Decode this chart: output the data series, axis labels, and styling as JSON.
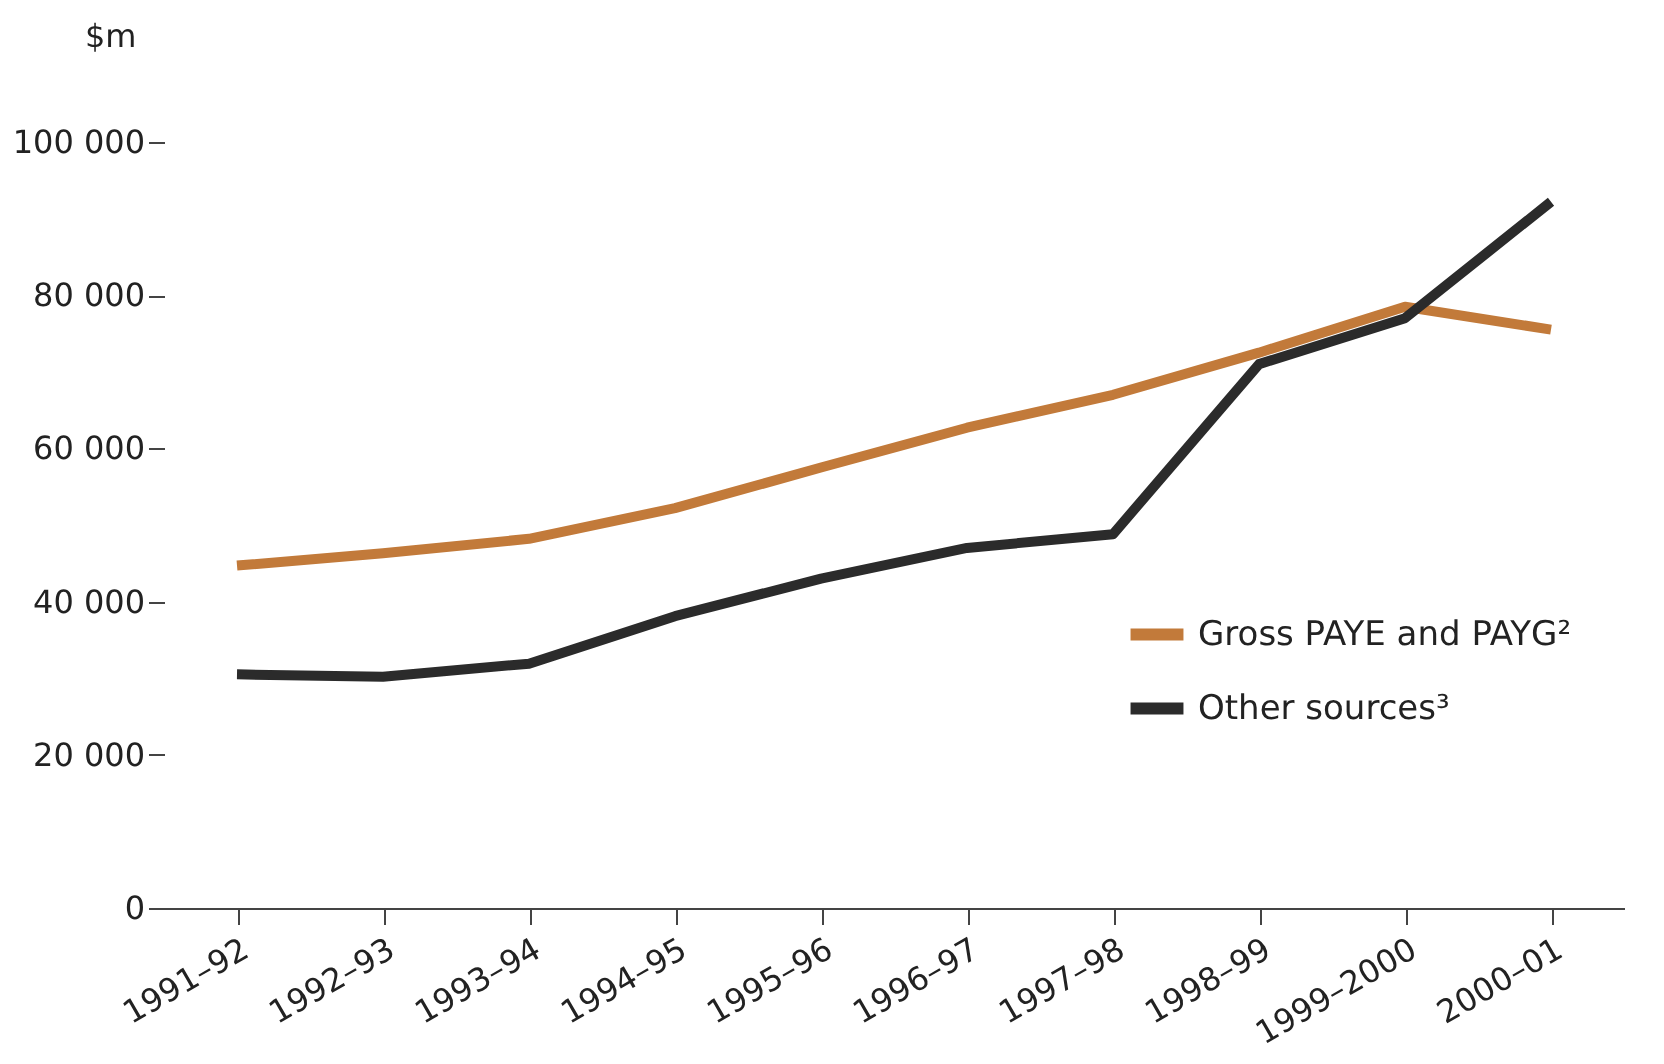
{
  "chart_data": {
    "type": "line",
    "ylabel": "$m",
    "categories": [
      "1991–92",
      "1992–93",
      "1993–94",
      "1994–95",
      "1995–96",
      "1996–97",
      "1997–98",
      "1998–99",
      "1999–2000",
      "2000–01"
    ],
    "series": [
      {
        "name": "Gross PAYE and PAYG²",
        "color": "#c27a3a",
        "values": [
          44700,
          46300,
          48200,
          52200,
          57500,
          62700,
          67000,
          72500,
          78500,
          75500
        ]
      },
      {
        "name": "Other sources³",
        "color": "#2b2b2b",
        "values": [
          30500,
          30200,
          31900,
          38100,
          43000,
          47000,
          48800,
          71000,
          77000,
          92200
        ]
      }
    ],
    "ylim": [
      0,
      100000
    ],
    "yticks": [
      {
        "value": 0,
        "label": "0"
      },
      {
        "value": 20000,
        "label": "20 000"
      },
      {
        "value": 40000,
        "label": "40 000"
      },
      {
        "value": 60000,
        "label": "60 000"
      },
      {
        "value": 80000,
        "label": "80 000"
      },
      {
        "value": 100000,
        "label": "100 000"
      }
    ],
    "legend": "right",
    "grid": false,
    "marker": "none",
    "line_style": "solid"
  }
}
